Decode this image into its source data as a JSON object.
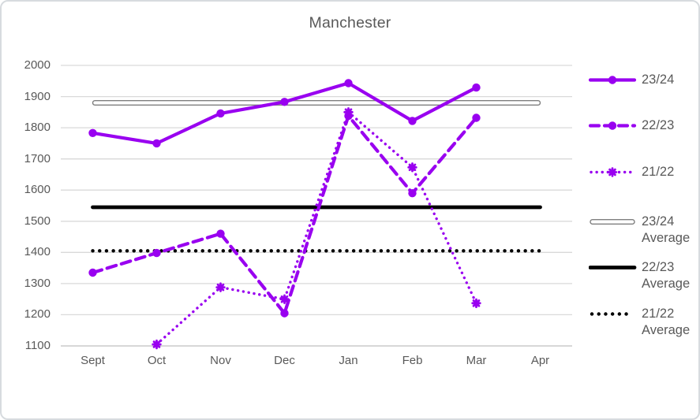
{
  "chart_data": {
    "type": "line",
    "title": "Manchester",
    "xlabel": "",
    "ylabel": "",
    "categories": [
      "Sept",
      "Oct",
      "Nov",
      "Dec",
      "Jan",
      "Feb",
      "Mar",
      "Apr"
    ],
    "yticks": [
      2000,
      1900,
      1800,
      1700,
      1600,
      1500,
      1400,
      1300,
      1200,
      1100
    ],
    "ylim": [
      1100,
      2000
    ],
    "grid": true,
    "legend_position": "right",
    "series": [
      {
        "name": "23/24",
        "style": "solid",
        "marker": "circle",
        "color": "#9900f0",
        "values": [
          1783,
          1750,
          1846,
          1883,
          1943,
          1822,
          1929,
          null
        ]
      },
      {
        "name": "22/23",
        "style": "dashed",
        "marker": "circle",
        "color": "#9900f0",
        "values": [
          1335,
          1398,
          1460,
          1205,
          1838,
          1590,
          1832,
          null
        ]
      },
      {
        "name": "21/22",
        "style": "dotted",
        "marker": "star",
        "color": "#9900f0",
        "values": [
          null,
          1105,
          1288,
          1250,
          1850,
          1673,
          1237,
          null
        ]
      }
    ],
    "average_lines": [
      {
        "name": "23/24 Average",
        "value": 1880,
        "style": "double-gray",
        "color": "#7f7f7f"
      },
      {
        "name": "22/23 Average",
        "value": 1545,
        "style": "solid-black",
        "color": "#000000"
      },
      {
        "name": "21/22 Average",
        "value": 1405,
        "style": "dotted-black",
        "color": "#000000"
      }
    ]
  },
  "colors": {
    "series_purple": "#9900f0",
    "text_gray": "#595959",
    "gridline": "#d9d9d9",
    "axis_line": "#bfbfbf"
  }
}
